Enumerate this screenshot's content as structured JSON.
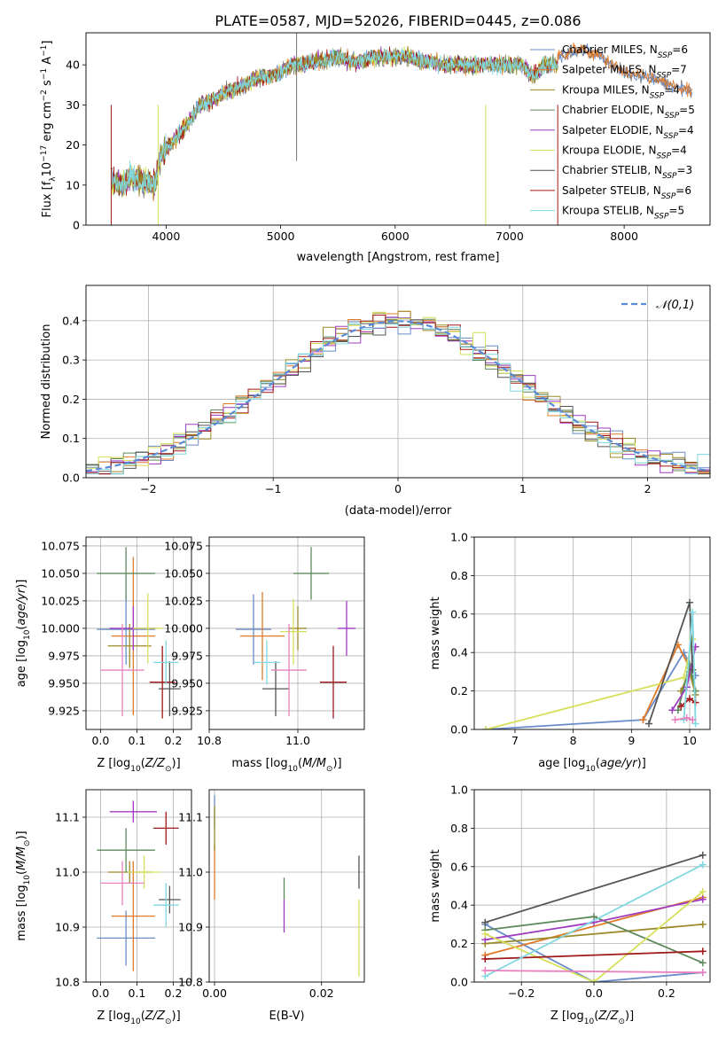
{
  "figure_title": "PLATE=0587, MJD=52026, FIBERID=0445, z=0.086",
  "models": [
    {
      "name": "Chabrier MILES",
      "nssp": "6",
      "color": "#6a8cc8"
    },
    {
      "name": "Salpeter MILES",
      "nssp": "7",
      "color": "#e07b2a"
    },
    {
      "name": "Kroupa MILES",
      "nssp": "4",
      "color": "#9c8a2a"
    },
    {
      "name": "Chabrier ELODIE",
      "nssp": "5",
      "color": "#5e8a5e"
    },
    {
      "name": "Salpeter ELODIE",
      "nssp": "4",
      "color": "#a03cc0"
    },
    {
      "name": "Kroupa ELODIE",
      "nssp": "4",
      "color": "#d6e05a"
    },
    {
      "name": "Chabrier STELIB",
      "nssp": "3",
      "color": "#555555"
    },
    {
      "name": "Salpeter STELIB",
      "nssp": "6",
      "color": "#a01818"
    },
    {
      "name": "Kroupa STELIB",
      "nssp": "5",
      "color": "#80d8e0"
    }
  ],
  "chart_data": [
    {
      "id": "spectrum",
      "type": "line",
      "xlabel": "wavelength [Angstrom, rest frame]",
      "ylabel": "Flux [f_λ 10^-17 erg cm^-2 s^-1 A^-1]",
      "xlim": [
        3300,
        8750
      ],
      "ylim": [
        0,
        48
      ],
      "xticks": [
        4000,
        5000,
        6000,
        7000,
        8000
      ],
      "yticks": [
        0,
        10,
        20,
        30,
        40
      ],
      "legend": "upper right",
      "grid": false,
      "continuum_x": [
        3520,
        3600,
        3700,
        3800,
        3900,
        3950,
        4000,
        4100,
        4200,
        4300,
        4400,
        4500,
        4600,
        4700,
        4800,
        4900,
        5000,
        5100,
        5200,
        5300,
        5400,
        5500,
        5600,
        5700,
        5800,
        5900,
        6000,
        6100,
        6200,
        6300,
        6400,
        6500,
        6600,
        6700,
        6800,
        6900,
        7000,
        7100,
        7200,
        7300,
        7400
      ],
      "continuum_y": [
        11,
        10,
        12,
        11,
        10,
        17,
        19,
        22,
        26,
        30,
        31,
        33,
        34,
        35,
        37,
        37,
        38,
        40,
        40,
        41,
        41,
        42,
        41,
        41,
        42,
        42,
        42,
        42,
        41,
        41,
        40,
        40,
        40,
        40,
        40,
        40,
        40,
        40,
        37,
        40,
        40
      ],
      "tail_x": [
        7400,
        7600,
        7800,
        8000,
        8200,
        8400,
        8600
      ],
      "tail_y": [
        42,
        44,
        42,
        38,
        37,
        35,
        33
      ]
    },
    {
      "id": "residuals",
      "type": "line",
      "xlabel": "(data-model)/error",
      "ylabel": "Normed distribution",
      "xlim": [
        -2.5,
        2.5
      ],
      "ylim": [
        0,
        0.49
      ],
      "xticks": [
        -2,
        -1,
        0,
        1,
        2
      ],
      "yticks": [
        0.0,
        0.1,
        0.2,
        0.3,
        0.4
      ],
      "grid": true,
      "legend": "upper right",
      "reference": {
        "name": "𝒩(0,1)",
        "mean": 0,
        "sigma": 1
      }
    },
    {
      "id": "age-vs-Z",
      "type": "scatter",
      "xlabel": "Z [log10(Z/Z⊙)]",
      "ylabel": "age  [log10(age/yr)]",
      "xlim": [
        -0.04,
        0.25
      ],
      "ylim": [
        9.908,
        10.083
      ],
      "xticks": [
        0.0,
        0.1,
        0.2
      ],
      "yticks": [
        9.925,
        9.95,
        9.975,
        10.0,
        10.025,
        10.05,
        10.075
      ],
      "grid": true,
      "points": [
        {
          "x": 0.07,
          "y": 9.999,
          "xerr": 0.08,
          "yerr": 0.032
        },
        {
          "x": 0.09,
          "y": 9.993,
          "xerr": 0.06,
          "yerr": 0.072
        },
        {
          "x": 0.08,
          "y": 9.984,
          "xerr": 0.06,
          "yerr": 0.02
        },
        {
          "x": 0.07,
          "y": 10.05,
          "xerr": 0.08,
          "yerr": 0.024
        },
        {
          "x": 0.09,
          "y": 10.0,
          "xerr": 0.065,
          "yerr": 0.02
        },
        {
          "x": 0.13,
          "y": 10.0,
          "xerr": 0.04,
          "yerr": 0.032
        },
        {
          "x": 0.19,
          "y": 9.945,
          "xerr": 0.03,
          "yerr": 0.025
        },
        {
          "x": 0.17,
          "y": 9.951,
          "xerr": 0.035,
          "yerr": 0.033
        },
        {
          "x": 0.18,
          "y": 9.969,
          "xerr": 0.035,
          "yerr": 0.02
        },
        {
          "x": 0.06,
          "y": 9.962,
          "xerr": 0.06,
          "yerr": 0.042
        }
      ]
    },
    {
      "id": "age-vs-mass",
      "type": "scatter",
      "xlabel": "mass [log10(M/M⊙)]",
      "ylabel": "",
      "xlim": [
        10.8,
        11.15
      ],
      "ylim": [
        9.908,
        10.083
      ],
      "xticks": [
        10.8,
        11.0
      ],
      "yticks": [
        9.925,
        9.95,
        9.975,
        10.0,
        10.025,
        10.05,
        10.075
      ],
      "grid": true,
      "points": [
        {
          "x": 10.9,
          "y": 9.999,
          "xerr": 0.04,
          "yerr": 0.032
        },
        {
          "x": 10.92,
          "y": 9.993,
          "xerr": 0.05,
          "yerr": 0.04
        },
        {
          "x": 11.0,
          "y": 10.0,
          "xerr": 0.02,
          "yerr": 0.02
        },
        {
          "x": 11.03,
          "y": 10.05,
          "xerr": 0.04,
          "yerr": 0.024
        },
        {
          "x": 11.11,
          "y": 10.0,
          "xerr": 0.02,
          "yerr": 0.025
        },
        {
          "x": 10.99,
          "y": 9.997,
          "xerr": 0.03,
          "yerr": 0.03
        },
        {
          "x": 10.95,
          "y": 9.945,
          "xerr": 0.03,
          "yerr": 0.025
        },
        {
          "x": 11.08,
          "y": 9.951,
          "xerr": 0.03,
          "yerr": 0.033
        },
        {
          "x": 10.93,
          "y": 9.969,
          "xerr": 0.03,
          "yerr": 0.02
        },
        {
          "x": 10.98,
          "y": 9.962,
          "xerr": 0.04,
          "yerr": 0.042
        }
      ]
    },
    {
      "id": "weight-vs-age",
      "type": "line",
      "xlabel": "age  [log10(age/yr)]",
      "ylabel": "mass weight",
      "xlim": [
        6.3,
        10.35
      ],
      "ylim": [
        0.0,
        1.0
      ],
      "xticks": [
        7,
        8,
        9,
        10
      ],
      "yticks": [
        0.0,
        0.2,
        0.4,
        0.6,
        0.8,
        1.0
      ],
      "grid": true,
      "series": [
        {
          "x": [
            6.5,
            9.2,
            9.9,
            10.1
          ],
          "y": [
            0.0,
            0.05,
            0.4,
            0.28
          ]
        },
        {
          "x": [
            9.2,
            9.8,
            10.0,
            10.1
          ],
          "y": [
            0.05,
            0.44,
            0.32,
            0.2
          ]
        },
        {
          "x": [
            9.85,
            10.0,
            10.1
          ],
          "y": [
            0.2,
            0.3,
            0.18
          ]
        },
        {
          "x": [
            9.8,
            10.0,
            10.1
          ],
          "y": [
            0.1,
            0.34,
            0.2
          ]
        },
        {
          "x": [
            9.7,
            9.95,
            10.1
          ],
          "y": [
            0.1,
            0.22,
            0.43
          ]
        },
        {
          "x": [
            6.5,
            9.9,
            10.05
          ],
          "y": [
            0.0,
            0.27,
            0.47
          ]
        },
        {
          "x": [
            9.3,
            10.0,
            10.05
          ],
          "y": [
            0.03,
            0.66,
            0.31
          ]
        },
        {
          "x": [
            9.85,
            10.0,
            10.1
          ],
          "y": [
            0.12,
            0.16,
            0.14
          ]
        },
        {
          "x": [
            9.9,
            10.05,
            10.1
          ],
          "y": [
            0.05,
            0.61,
            0.03
          ]
        },
        {
          "x": [
            9.75,
            9.95,
            10.05
          ],
          "y": [
            0.05,
            0.06,
            0.05
          ]
        }
      ]
    },
    {
      "id": "mass-vs-Z",
      "type": "scatter",
      "xlabel": "Z [log10(Z/Z⊙)]",
      "ylabel": "mass [log10(M/M⊙)]",
      "xlim": [
        -0.04,
        0.25
      ],
      "ylim": [
        10.8,
        11.15
      ],
      "xticks": [
        0.0,
        0.1,
        0.2
      ],
      "yticks": [
        10.8,
        10.9,
        11.0,
        11.1
      ],
      "grid": true,
      "points": [
        {
          "x": 0.07,
          "y": 10.88,
          "xerr": 0.08,
          "yerr": 0.05
        },
        {
          "x": 0.09,
          "y": 10.92,
          "xerr": 0.06,
          "yerr": 0.1
        },
        {
          "x": 0.08,
          "y": 11.0,
          "xerr": 0.06,
          "yerr": 0.02
        },
        {
          "x": 0.07,
          "y": 11.04,
          "xerr": 0.08,
          "yerr": 0.04
        },
        {
          "x": 0.09,
          "y": 11.11,
          "xerr": 0.065,
          "yerr": 0.02
        },
        {
          "x": 0.12,
          "y": 11.0,
          "xerr": 0.045,
          "yerr": 0.03
        },
        {
          "x": 0.19,
          "y": 10.95,
          "xerr": 0.03,
          "yerr": 0.025
        },
        {
          "x": 0.18,
          "y": 11.08,
          "xerr": 0.035,
          "yerr": 0.03
        },
        {
          "x": 0.18,
          "y": 10.94,
          "xerr": 0.035,
          "yerr": 0.04
        },
        {
          "x": 0.06,
          "y": 10.98,
          "xerr": 0.06,
          "yerr": 0.04
        }
      ]
    },
    {
      "id": "mass-vs-ebv",
      "type": "scatter",
      "xlabel": "E(B-V)",
      "ylabel": "",
      "xlim": [
        -0.001,
        0.028
      ],
      "ylim": [
        10.8,
        11.15
      ],
      "xticks": [
        0.0,
        0.02
      ],
      "yticks": [
        10.8,
        10.9,
        11.0,
        11.1
      ],
      "grid": true,
      "points": [
        {
          "x": 0.0,
          "y": 11.11,
          "xerr": 0.0,
          "yerr": 0.03
        },
        {
          "x": 0.0,
          "y": 11.0,
          "xerr": 0.0,
          "yerr": 0.05
        },
        {
          "x": 0.0,
          "y": 11.08,
          "xerr": 0.0,
          "yerr": 0.04
        },
        {
          "x": 0.013,
          "y": 10.97,
          "xerr": 0.0,
          "yerr": 0.02
        },
        {
          "x": 0.013,
          "y": 10.92,
          "xerr": 0.0,
          "yerr": 0.03
        },
        {
          "x": 0.027,
          "y": 10.88,
          "xerr": 0.0,
          "yerr": 0.07
        },
        {
          "x": 0.027,
          "y": 11.0,
          "xerr": 0.0,
          "yerr": 0.03
        }
      ]
    },
    {
      "id": "weight-vs-Z",
      "type": "line",
      "xlabel": "Z [log10(Z/Z⊙)]",
      "ylabel": "mass weight",
      "xlim": [
        -0.33,
        0.32
      ],
      "ylim": [
        0.0,
        1.0
      ],
      "xticks": [
        -0.2,
        0.0,
        0.2
      ],
      "yticks": [
        0.0,
        0.2,
        0.4,
        0.6,
        0.8,
        1.0
      ],
      "grid": true,
      "series": [
        {
          "x": [
            -0.3,
            0.0,
            0.3
          ],
          "y": [
            0.3,
            0.0,
            0.05
          ]
        },
        {
          "x": [
            -0.3,
            0.3
          ],
          "y": [
            0.14,
            0.44
          ]
        },
        {
          "x": [
            -0.3,
            0.3
          ],
          "y": [
            0.2,
            0.3
          ]
        },
        {
          "x": [
            -0.3,
            0.0,
            0.3
          ],
          "y": [
            0.27,
            0.34,
            0.1
          ]
        },
        {
          "x": [
            -0.3,
            0.0,
            0.3
          ],
          "y": [
            0.22,
            0.31,
            0.43
          ]
        },
        {
          "x": [
            -0.3,
            0.0,
            0.3
          ],
          "y": [
            0.25,
            0.0,
            0.47
          ]
        },
        {
          "x": [
            -0.3,
            0.3
          ],
          "y": [
            0.31,
            0.66
          ]
        },
        {
          "x": [
            -0.3,
            0.3
          ],
          "y": [
            0.12,
            0.16
          ]
        },
        {
          "x": [
            -0.3,
            0.3
          ],
          "y": [
            0.03,
            0.61
          ]
        },
        {
          "x": [
            -0.3,
            0.3
          ],
          "y": [
            0.06,
            0.05
          ]
        }
      ]
    }
  ]
}
